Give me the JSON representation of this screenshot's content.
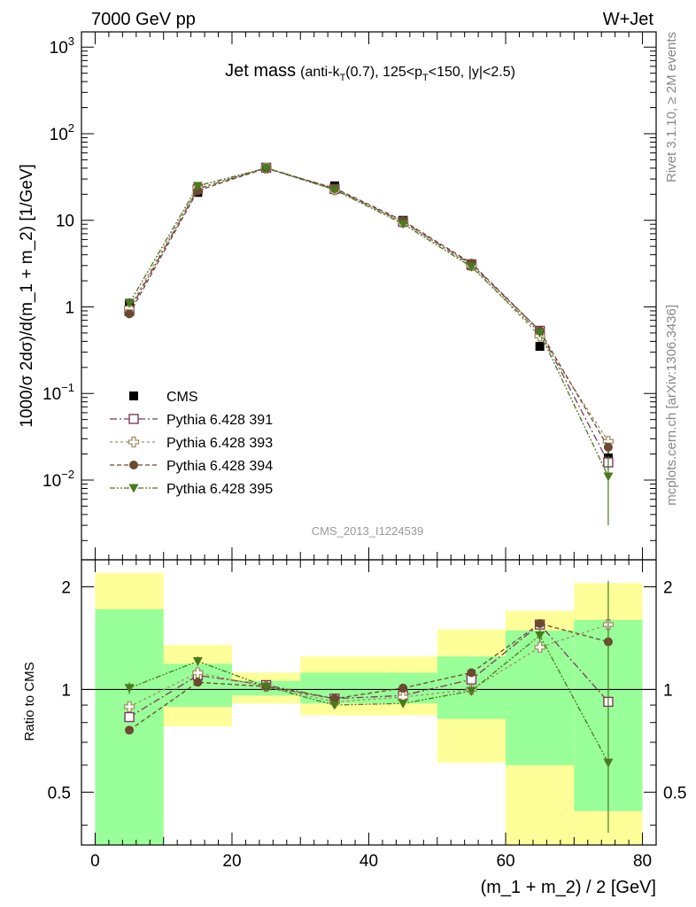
{
  "header": {
    "left": "7000 GeV pp",
    "right": "W+Jet"
  },
  "side_labels": {
    "top": "Rivet 3.1.10, ≥ 2M events",
    "bottom": "mcplots.cern.ch [arXiv:1306.3436]"
  },
  "watermark": "CMS_2013_I1224539",
  "chart_data": [
    {
      "type": "scatter",
      "panel": "main",
      "title": "Jet mass",
      "title_detail_parts": [
        "(anti-k",
        "T",
        "(0.7), 125<p",
        "T",
        "<150, |y|<2.5)"
      ],
      "ylabel": "1000/σ 2dσ)/d(m_1 + m_2) [1/GeV]",
      "yscale": "log",
      "ylim": [
        0.0012,
        1500
      ],
      "xlim": [
        -2,
        82
      ],
      "ytick_labels": [
        {
          "base": "10",
          "exp": "3",
          "value": 1000
        },
        {
          "base": "10",
          "exp": "2",
          "value": 100
        },
        {
          "base": "10",
          "exp": "",
          "value": 10
        },
        {
          "base": "1",
          "exp": "",
          "value": 1
        },
        {
          "base": "10",
          "exp": "−1",
          "value": 0.1
        },
        {
          "base": "10",
          "exp": "−2",
          "value": 0.01
        }
      ],
      "x": [
        5,
        15,
        25,
        35,
        45,
        55,
        65,
        75
      ],
      "series": [
        {
          "name": "CMS",
          "color": "#000000",
          "marker": "square-filled",
          "values": [
            1.1,
            21,
            40,
            25,
            10,
            3.0,
            0.35,
            0.018
          ],
          "err_low": [
            0.95,
            19.5,
            38.5,
            23.8,
            9.5,
            2.8,
            0.32,
            0.013
          ],
          "err_high": [
            1.25,
            22.5,
            41.5,
            26.2,
            10.5,
            3.2,
            0.38,
            0.023
          ]
        },
        {
          "name": "Pythia 6.428 391",
          "color": "#7a3b5a",
          "marker": "square-open",
          "dash": "8,3,2,3",
          "values": [
            0.9,
            23,
            40.5,
            23,
            9.6,
            3.1,
            0.53,
            0.016
          ]
        },
        {
          "name": "Pythia 6.428 393",
          "color": "#a09060",
          "marker": "cross-open",
          "dash": "3,3",
          "values": [
            0.97,
            23.5,
            40,
            22.5,
            9.5,
            3.0,
            0.46,
            0.028
          ]
        },
        {
          "name": "Pythia 6.428 394",
          "color": "#6b4a2f",
          "marker": "circle-filled",
          "dash": "5,3",
          "values": [
            0.83,
            22,
            40,
            23.5,
            9.9,
            3.2,
            0.53,
            0.024
          ]
        },
        {
          "name": "Pythia 6.428 395",
          "color": "#4a7a1e",
          "marker": "triangle-down-filled",
          "dash": "6,2,2,2,2,2",
          "values": [
            1.1,
            25,
            40,
            22.5,
            9.1,
            2.9,
            0.5,
            0.011
          ],
          "err_low": [
            1.05,
            24,
            39.5,
            22,
            8.9,
            2.85,
            0.46,
            0.003
          ],
          "err_high": [
            1.15,
            26,
            40.5,
            23,
            9.3,
            2.95,
            0.54,
            0.019
          ]
        }
      ]
    },
    {
      "type": "scatter",
      "panel": "ratio",
      "ylabel": "Ratio to CMS",
      "xlabel": "(m_1 + m_2) / 2 [GeV]",
      "yscale": "log",
      "ylim": [
        0.35,
        2.4
      ],
      "xlim": [
        -2,
        82
      ],
      "ytick_labels": [
        {
          "label": "2",
          "value": 2
        },
        {
          "label": "1",
          "value": 1
        },
        {
          "label": "0.5",
          "value": 0.5
        }
      ],
      "xtick_labels": [
        {
          "label": "0",
          "value": 0
        },
        {
          "label": "20",
          "value": 20
        },
        {
          "label": "40",
          "value": 40
        },
        {
          "label": "60",
          "value": 60
        },
        {
          "label": "80",
          "value": 80
        }
      ],
      "bands": [
        {
          "x0": 0,
          "x1": 10,
          "yellow": [
            0.33,
            2.2
          ],
          "green": [
            0.33,
            1.72
          ]
        },
        {
          "x0": 10,
          "x1": 20,
          "yellow": [
            0.78,
            1.35
          ],
          "green": [
            0.89,
            1.19
          ]
        },
        {
          "x0": 20,
          "x1": 30,
          "yellow": [
            0.91,
            1.12
          ],
          "green": [
            0.96,
            1.06
          ]
        },
        {
          "x0": 30,
          "x1": 40,
          "yellow": [
            0.84,
            1.25
          ],
          "green": [
            0.91,
            1.12
          ]
        },
        {
          "x0": 40,
          "x1": 50,
          "yellow": [
            0.84,
            1.25
          ],
          "green": [
            0.91,
            1.12
          ]
        },
        {
          "x0": 50,
          "x1": 60,
          "yellow": [
            0.61,
            1.5
          ],
          "green": [
            0.82,
            1.25
          ]
        },
        {
          "x0": 60,
          "x1": 70,
          "yellow": [
            0.33,
            1.7
          ],
          "green": [
            0.6,
            1.49
          ]
        },
        {
          "x0": 70,
          "x1": 80,
          "yellow": [
            0.33,
            2.05
          ],
          "green": [
            0.44,
            1.6
          ]
        }
      ],
      "x": [
        5,
        15,
        25,
        35,
        45,
        55,
        65,
        75
      ],
      "series": [
        {
          "name": "Pythia 6.428 391",
          "color": "#7a3b5a",
          "marker": "square-open",
          "dash": "8,3,2,3",
          "values": [
            0.83,
            1.1,
            1.03,
            0.94,
            0.96,
            1.07,
            1.55,
            0.92
          ]
        },
        {
          "name": "Pythia 6.428 393",
          "color": "#a09060",
          "marker": "cross-open",
          "dash": "3,3",
          "values": [
            0.89,
            1.12,
            1.02,
            0.92,
            0.95,
            1.0,
            1.33,
            1.55
          ]
        },
        {
          "name": "Pythia 6.428 394",
          "color": "#6b4a2f",
          "marker": "circle-filled",
          "dash": "5,3",
          "values": [
            0.76,
            1.05,
            1.02,
            0.94,
            1.01,
            1.12,
            1.56,
            1.38
          ]
        },
        {
          "name": "Pythia 6.428 395",
          "color": "#4a7a1e",
          "marker": "triangle-down-filled",
          "dash": "6,2,2,2,2,2",
          "values": [
            1.01,
            1.21,
            1.02,
            0.9,
            0.91,
            0.99,
            1.44,
            0.61
          ],
          "err_low": [
            0.97,
            1.17,
            1.0,
            0.88,
            0.89,
            0.96,
            1.38,
            0.38
          ],
          "err_high": [
            1.05,
            1.25,
            1.04,
            0.92,
            0.93,
            1.03,
            1.5,
            2.08
          ]
        }
      ]
    }
  ]
}
